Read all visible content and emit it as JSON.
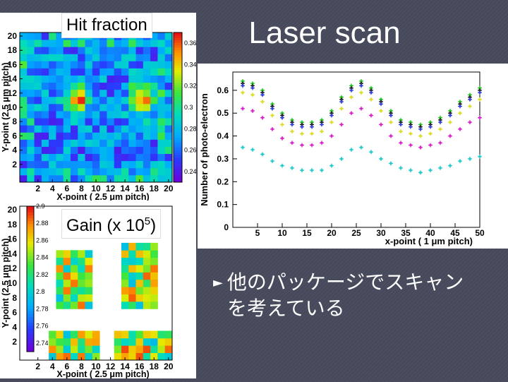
{
  "slide": {
    "title": "Laser scan",
    "bullet_marker": "►",
    "bullet_line1": "他のパッケージでスキャン",
    "bullet_line2": "を考えている",
    "hit_label": "Hit fraction",
    "gain_label_prefix": "Gain (x 10",
    "gain_label_exp": "5",
    "gain_label_suffix": ")"
  },
  "chart_data": [
    {
      "type": "heatmap",
      "title": "Hit fraction",
      "xlabel": "X-point ( 2.5 μm pitch)",
      "ylabel": "Y-point (2.5 μm pitch)",
      "x_ticks": [
        "2",
        "4",
        "6",
        "8",
        "10",
        "12",
        "14",
        "16",
        "18",
        "20"
      ],
      "y_ticks": [
        "2",
        "4",
        "6",
        "8",
        "10",
        "12",
        "14",
        "16",
        "18",
        "20"
      ],
      "colorbar_ticks": [
        "0.36",
        "0.34",
        "0.32",
        "0.3",
        "0.28",
        "0.26",
        "0.24"
      ],
      "zlim": [
        0.23,
        0.37
      ],
      "grid_size": [
        21,
        21
      ],
      "hotspots": [
        {
          "x": 7.5,
          "y": 11.5,
          "value": 0.36
        },
        {
          "x": 16.5,
          "y": 11.5,
          "value": 0.36
        }
      ]
    },
    {
      "type": "heatmap",
      "xlabel": "X-point ( 2.5 μm pitch)",
      "ylabel": "Y-point (2.5 μm pitch)",
      "x_ticks": [
        "2",
        "4",
        "6",
        "8",
        "10",
        "12",
        "14",
        "16",
        "18",
        "20"
      ],
      "y_ticks": [
        "2",
        "4",
        "6",
        "8",
        "10",
        "12",
        "14",
        "16",
        "18",
        "20"
      ],
      "colorbar_ticks": [
        "2.9",
        "2.88",
        "2.86",
        "2.84",
        "2.82",
        "2.8",
        "2.78",
        "2.76",
        "2.74"
      ],
      "zlim": [
        2.73,
        2.9
      ],
      "grid_size": [
        21,
        21
      ],
      "regions": [
        {
          "x": [
            5,
            9
          ],
          "y": [
            7,
            14
          ]
        },
        {
          "x": [
            14,
            18
          ],
          "y": [
            7,
            15
          ]
        },
        {
          "x": [
            4,
            10
          ],
          "y": [
            0,
            3
          ]
        },
        {
          "x": [
            13,
            20
          ],
          "y": [
            0,
            3
          ]
        }
      ]
    },
    {
      "type": "scatter",
      "xlabel": "x-point ( 1 μm pitch)",
      "ylabel": "Number of photo-electron",
      "x_ticks": [
        "5",
        "10",
        "15",
        "20",
        "25",
        "30",
        "35",
        "40",
        "45",
        "50"
      ],
      "y_ticks": [
        "0",
        "0.1",
        "0.2",
        "0.3",
        "0.4",
        "0.5",
        "0.6"
      ],
      "xlim": [
        0,
        50
      ],
      "ylim": [
        0,
        0.68
      ],
      "x": [
        2,
        4,
        6,
        8,
        10,
        12,
        14,
        16,
        18,
        20,
        22,
        24,
        26,
        28,
        30,
        32,
        34,
        36,
        38,
        40,
        42,
        44,
        46,
        48,
        50
      ],
      "series": [
        {
          "color": "#22cc22",
          "values": [
            0.64,
            0.63,
            0.6,
            0.54,
            0.5,
            0.47,
            0.46,
            0.46,
            0.47,
            0.51,
            0.57,
            0.62,
            0.64,
            0.61,
            0.56,
            0.51,
            0.47,
            0.46,
            0.45,
            0.46,
            0.48,
            0.51,
            0.55,
            0.58,
            0.61
          ]
        },
        {
          "color": "#222222",
          "values": [
            0.63,
            0.62,
            0.59,
            0.53,
            0.49,
            0.46,
            0.45,
            0.45,
            0.46,
            0.5,
            0.56,
            0.61,
            0.63,
            0.6,
            0.55,
            0.5,
            0.46,
            0.45,
            0.44,
            0.45,
            0.47,
            0.5,
            0.54,
            0.57,
            0.6
          ]
        },
        {
          "color": "#3344dd",
          "values": [
            0.62,
            0.61,
            0.58,
            0.52,
            0.48,
            0.45,
            0.44,
            0.44,
            0.45,
            0.49,
            0.55,
            0.6,
            0.62,
            0.59,
            0.54,
            0.49,
            0.45,
            0.44,
            0.43,
            0.44,
            0.46,
            0.49,
            0.53,
            0.56,
            0.59
          ]
        },
        {
          "color": "#dddd22",
          "values": [
            0.59,
            0.58,
            0.55,
            0.49,
            0.45,
            0.42,
            0.41,
            0.41,
            0.42,
            0.46,
            0.52,
            0.57,
            0.59,
            0.56,
            0.51,
            0.46,
            0.42,
            0.41,
            0.4,
            0.41,
            0.43,
            0.46,
            0.5,
            0.53,
            0.56
          ]
        },
        {
          "color": "#dd22cc",
          "values": [
            0.52,
            0.51,
            0.48,
            0.43,
            0.39,
            0.37,
            0.36,
            0.36,
            0.37,
            0.4,
            0.45,
            0.5,
            0.52,
            0.49,
            0.45,
            0.4,
            0.37,
            0.36,
            0.35,
            0.36,
            0.37,
            0.4,
            0.43,
            0.46,
            0.48
          ]
        },
        {
          "color": "#22cccc",
          "values": [
            0.35,
            0.34,
            0.32,
            0.29,
            0.27,
            0.26,
            0.25,
            0.25,
            0.25,
            0.27,
            0.3,
            0.34,
            0.35,
            0.33,
            0.3,
            0.28,
            0.26,
            0.25,
            0.24,
            0.25,
            0.26,
            0.27,
            0.29,
            0.3,
            0.31
          ]
        }
      ]
    }
  ]
}
